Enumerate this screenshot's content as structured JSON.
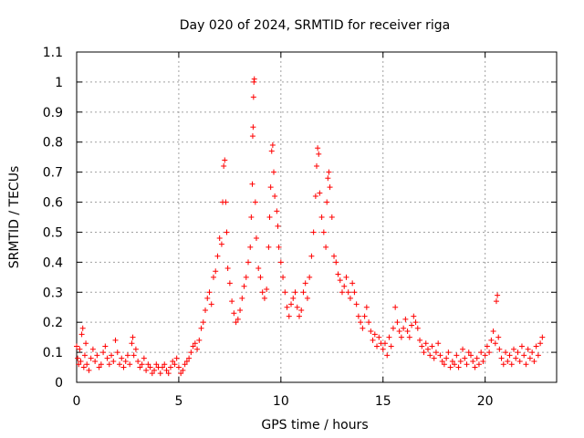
{
  "chart_data": {
    "type": "scatter",
    "title": "Day 020 of 2024, SRMTID for receiver riga",
    "xlabel": "GPS time / hours",
    "ylabel": "SRMTID / TECUs",
    "xlim": [
      0,
      23.5
    ],
    "ylim": [
      0,
      1.1
    ],
    "x_ticks": [
      0,
      5,
      10,
      15,
      20
    ],
    "x_tick_labels": [
      "0",
      "5",
      "10",
      "15",
      "20"
    ],
    "y_ticks": [
      0,
      0.1,
      0.2,
      0.3,
      0.4,
      0.5,
      0.6,
      0.7,
      0.8,
      0.9,
      1,
      1.1
    ],
    "y_tick_labels": [
      "0",
      "0.1",
      "0.2",
      "0.3",
      "0.4",
      "0.5",
      "0.6",
      "0.7",
      "0.8",
      "0.9",
      "1",
      "1.1"
    ],
    "grid": true,
    "marker": "+",
    "colors": {
      "points": "#ff0000",
      "grid": "#a0a0a0",
      "axes": "#000000"
    },
    "series": [
      {
        "name": "SRMTID",
        "points": [
          [
            0.0,
            0.12
          ],
          [
            0.05,
            0.08
          ],
          [
            0.1,
            0.06
          ],
          [
            0.15,
            0.11
          ],
          [
            0.2,
            0.07
          ],
          [
            0.25,
            0.16
          ],
          [
            0.3,
            0.18
          ],
          [
            0.35,
            0.05
          ],
          [
            0.4,
            0.09
          ],
          [
            0.45,
            0.13
          ],
          [
            0.5,
            0.06
          ],
          [
            0.6,
            0.04
          ],
          [
            0.7,
            0.08
          ],
          [
            0.8,
            0.11
          ],
          [
            0.9,
            0.07
          ],
          [
            1.0,
            0.09
          ],
          [
            1.1,
            0.05
          ],
          [
            1.2,
            0.06
          ],
          [
            1.3,
            0.1
          ],
          [
            1.4,
            0.12
          ],
          [
            1.5,
            0.08
          ],
          [
            1.6,
            0.06
          ],
          [
            1.7,
            0.09
          ],
          [
            1.8,
            0.07
          ],
          [
            1.9,
            0.14
          ],
          [
            2.0,
            0.1
          ],
          [
            2.1,
            0.06
          ],
          [
            2.2,
            0.08
          ],
          [
            2.3,
            0.05
          ],
          [
            2.4,
            0.07
          ],
          [
            2.5,
            0.09
          ],
          [
            2.6,
            0.06
          ],
          [
            2.7,
            0.13
          ],
          [
            2.75,
            0.15
          ],
          [
            2.8,
            0.09
          ],
          [
            2.9,
            0.11
          ],
          [
            3.0,
            0.07
          ],
          [
            3.1,
            0.05
          ],
          [
            3.2,
            0.06
          ],
          [
            3.3,
            0.08
          ],
          [
            3.4,
            0.04
          ],
          [
            3.5,
            0.06
          ],
          [
            3.6,
            0.05
          ],
          [
            3.7,
            0.03
          ],
          [
            3.8,
            0.04
          ],
          [
            3.9,
            0.06
          ],
          [
            4.0,
            0.05
          ],
          [
            4.1,
            0.03
          ],
          [
            4.2,
            0.05
          ],
          [
            4.3,
            0.06
          ],
          [
            4.4,
            0.04
          ],
          [
            4.5,
            0.03
          ],
          [
            4.6,
            0.05
          ],
          [
            4.7,
            0.07
          ],
          [
            4.8,
            0.06
          ],
          [
            4.9,
            0.08
          ],
          [
            5.0,
            0.05
          ],
          [
            5.1,
            0.03
          ],
          [
            5.2,
            0.04
          ],
          [
            5.3,
            0.06
          ],
          [
            5.4,
            0.07
          ],
          [
            5.5,
            0.08
          ],
          [
            5.6,
            0.1
          ],
          [
            5.7,
            0.12
          ],
          [
            5.8,
            0.13
          ],
          [
            5.9,
            0.11
          ],
          [
            6.0,
            0.14
          ],
          [
            6.1,
            0.18
          ],
          [
            6.2,
            0.2
          ],
          [
            6.3,
            0.24
          ],
          [
            6.4,
            0.28
          ],
          [
            6.5,
            0.3
          ],
          [
            6.6,
            0.26
          ],
          [
            6.7,
            0.35
          ],
          [
            6.8,
            0.37
          ],
          [
            6.9,
            0.42
          ],
          [
            7.0,
            0.48
          ],
          [
            7.1,
            0.46
          ],
          [
            7.15,
            0.6
          ],
          [
            7.2,
            0.72
          ],
          [
            7.25,
            0.74
          ],
          [
            7.3,
            0.6
          ],
          [
            7.35,
            0.5
          ],
          [
            7.4,
            0.38
          ],
          [
            7.5,
            0.33
          ],
          [
            7.6,
            0.27
          ],
          [
            7.7,
            0.23
          ],
          [
            7.8,
            0.2
          ],
          [
            7.9,
            0.21
          ],
          [
            8.0,
            0.24
          ],
          [
            8.1,
            0.28
          ],
          [
            8.2,
            0.32
          ],
          [
            8.3,
            0.35
          ],
          [
            8.4,
            0.4
          ],
          [
            8.5,
            0.45
          ],
          [
            8.55,
            0.55
          ],
          [
            8.6,
            0.66
          ],
          [
            8.62,
            0.82
          ],
          [
            8.64,
            0.85
          ],
          [
            8.66,
            0.95
          ],
          [
            8.68,
            1.0
          ],
          [
            8.7,
            1.01
          ],
          [
            8.75,
            0.6
          ],
          [
            8.8,
            0.48
          ],
          [
            8.9,
            0.38
          ],
          [
            9.0,
            0.35
          ],
          [
            9.1,
            0.3
          ],
          [
            9.2,
            0.28
          ],
          [
            9.3,
            0.31
          ],
          [
            9.4,
            0.45
          ],
          [
            9.45,
            0.55
          ],
          [
            9.5,
            0.65
          ],
          [
            9.55,
            0.77
          ],
          [
            9.6,
            0.79
          ],
          [
            9.65,
            0.7
          ],
          [
            9.7,
            0.62
          ],
          [
            9.8,
            0.57
          ],
          [
            9.85,
            0.52
          ],
          [
            9.9,
            0.45
          ],
          [
            10.0,
            0.4
          ],
          [
            10.1,
            0.35
          ],
          [
            10.2,
            0.3
          ],
          [
            10.3,
            0.25
          ],
          [
            10.4,
            0.22
          ],
          [
            10.5,
            0.26
          ],
          [
            10.6,
            0.28
          ],
          [
            10.7,
            0.3
          ],
          [
            10.8,
            0.25
          ],
          [
            10.9,
            0.22
          ],
          [
            11.0,
            0.24
          ],
          [
            11.1,
            0.3
          ],
          [
            11.2,
            0.33
          ],
          [
            11.3,
            0.28
          ],
          [
            11.4,
            0.35
          ],
          [
            11.5,
            0.42
          ],
          [
            11.6,
            0.5
          ],
          [
            11.7,
            0.62
          ],
          [
            11.75,
            0.72
          ],
          [
            11.8,
            0.78
          ],
          [
            11.85,
            0.76
          ],
          [
            11.9,
            0.63
          ],
          [
            12.0,
            0.55
          ],
          [
            12.1,
            0.5
          ],
          [
            12.2,
            0.45
          ],
          [
            12.25,
            0.6
          ],
          [
            12.3,
            0.68
          ],
          [
            12.35,
            0.7
          ],
          [
            12.4,
            0.65
          ],
          [
            12.5,
            0.55
          ],
          [
            12.6,
            0.42
          ],
          [
            12.7,
            0.4
          ],
          [
            12.8,
            0.36
          ],
          [
            12.9,
            0.34
          ],
          [
            13.0,
            0.3
          ],
          [
            13.1,
            0.32
          ],
          [
            13.2,
            0.35
          ],
          [
            13.3,
            0.3
          ],
          [
            13.4,
            0.28
          ],
          [
            13.5,
            0.33
          ],
          [
            13.6,
            0.3
          ],
          [
            13.7,
            0.26
          ],
          [
            13.8,
            0.22
          ],
          [
            13.9,
            0.2
          ],
          [
            14.0,
            0.18
          ],
          [
            14.1,
            0.22
          ],
          [
            14.2,
            0.25
          ],
          [
            14.3,
            0.2
          ],
          [
            14.4,
            0.17
          ],
          [
            14.5,
            0.14
          ],
          [
            14.6,
            0.16
          ],
          [
            14.7,
            0.12
          ],
          [
            14.8,
            0.15
          ],
          [
            14.9,
            0.13
          ],
          [
            15.0,
            0.11
          ],
          [
            15.1,
            0.13
          ],
          [
            15.2,
            0.09
          ],
          [
            15.3,
            0.15
          ],
          [
            15.4,
            0.12
          ],
          [
            15.5,
            0.18
          ],
          [
            15.6,
            0.25
          ],
          [
            15.7,
            0.2
          ],
          [
            15.8,
            0.17
          ],
          [
            15.9,
            0.15
          ],
          [
            16.0,
            0.18
          ],
          [
            16.1,
            0.21
          ],
          [
            16.2,
            0.17
          ],
          [
            16.3,
            0.15
          ],
          [
            16.4,
            0.19
          ],
          [
            16.5,
            0.22
          ],
          [
            16.6,
            0.2
          ],
          [
            16.7,
            0.18
          ],
          [
            16.8,
            0.14
          ],
          [
            16.9,
            0.12
          ],
          [
            17.0,
            0.1
          ],
          [
            17.1,
            0.13
          ],
          [
            17.2,
            0.11
          ],
          [
            17.3,
            0.09
          ],
          [
            17.4,
            0.12
          ],
          [
            17.5,
            0.08
          ],
          [
            17.6,
            0.1
          ],
          [
            17.7,
            0.13
          ],
          [
            17.8,
            0.09
          ],
          [
            17.9,
            0.07
          ],
          [
            18.0,
            0.06
          ],
          [
            18.1,
            0.08
          ],
          [
            18.2,
            0.1
          ],
          [
            18.3,
            0.05
          ],
          [
            18.4,
            0.07
          ],
          [
            18.5,
            0.06
          ],
          [
            18.6,
            0.09
          ],
          [
            18.7,
            0.05
          ],
          [
            18.8,
            0.07
          ],
          [
            18.9,
            0.11
          ],
          [
            19.0,
            0.08
          ],
          [
            19.1,
            0.06
          ],
          [
            19.2,
            0.1
          ],
          [
            19.3,
            0.09
          ],
          [
            19.4,
            0.07
          ],
          [
            19.5,
            0.05
          ],
          [
            19.6,
            0.08
          ],
          [
            19.7,
            0.06
          ],
          [
            19.8,
            0.1
          ],
          [
            19.9,
            0.07
          ],
          [
            20.0,
            0.09
          ],
          [
            20.1,
            0.12
          ],
          [
            20.2,
            0.1
          ],
          [
            20.3,
            0.14
          ],
          [
            20.4,
            0.17
          ],
          [
            20.5,
            0.13
          ],
          [
            20.55,
            0.27
          ],
          [
            20.6,
            0.29
          ],
          [
            20.65,
            0.15
          ],
          [
            20.7,
            0.11
          ],
          [
            20.8,
            0.08
          ],
          [
            20.9,
            0.06
          ],
          [
            21.0,
            0.1
          ],
          [
            21.1,
            0.07
          ],
          [
            21.2,
            0.09
          ],
          [
            21.3,
            0.06
          ],
          [
            21.4,
            0.11
          ],
          [
            21.5,
            0.08
          ],
          [
            21.6,
            0.1
          ],
          [
            21.7,
            0.07
          ],
          [
            21.8,
            0.12
          ],
          [
            21.9,
            0.09
          ],
          [
            22.0,
            0.06
          ],
          [
            22.1,
            0.11
          ],
          [
            22.2,
            0.08
          ],
          [
            22.3,
            0.1
          ],
          [
            22.4,
            0.07
          ],
          [
            22.5,
            0.12
          ],
          [
            22.6,
            0.09
          ],
          [
            22.7,
            0.13
          ],
          [
            22.8,
            0.15
          ]
        ]
      }
    ]
  }
}
